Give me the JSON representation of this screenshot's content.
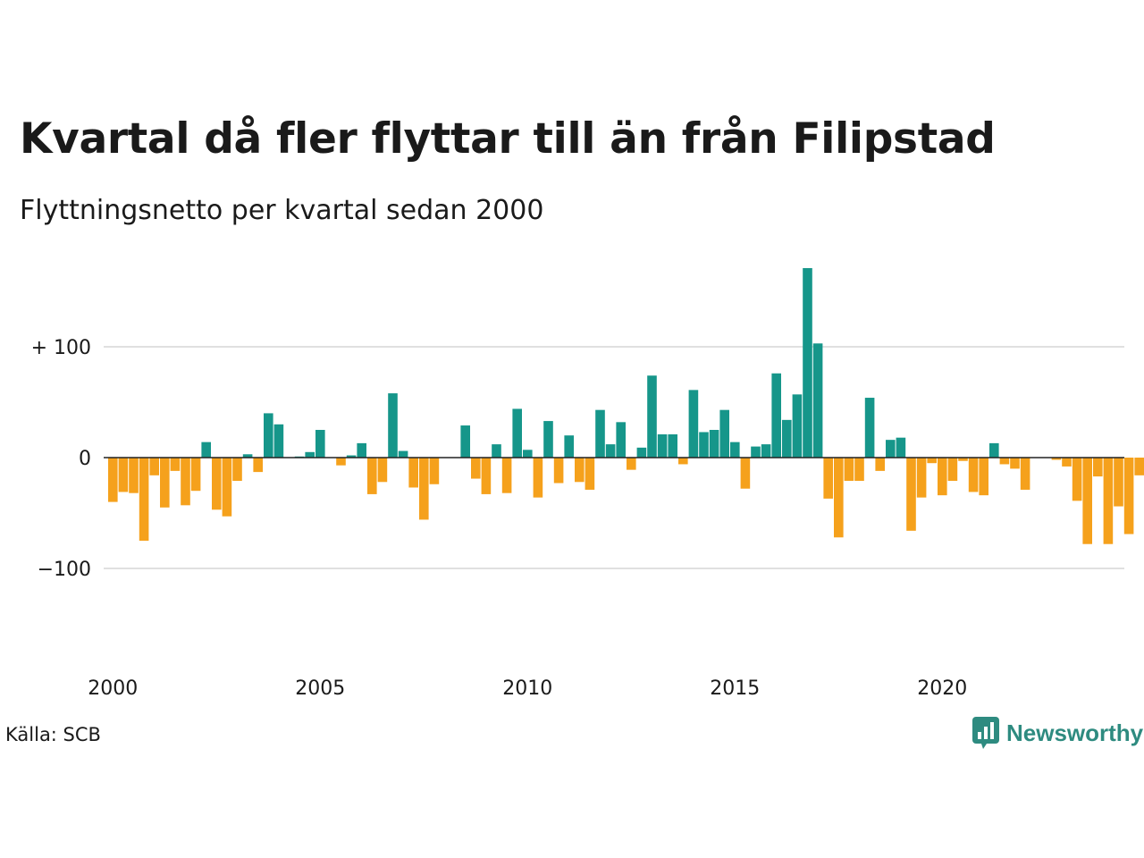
{
  "title": "Kvartal då fler flyttar till än från Filipstad",
  "subtitle": "Flyttningsnetto per kvartal sedan 2000",
  "source": "Källa: SCB",
  "brand": {
    "name": "Newsworthy",
    "color": "#2e8b80"
  },
  "chart_data": {
    "type": "bar",
    "colors": {
      "positive": "#16968a",
      "negative": "#f5a11c",
      "grid": "#e0e0e0",
      "zero_line": "#222222"
    },
    "ylim": [
      -200,
      200
    ],
    "y_ticks": [
      {
        "value": 100,
        "label": "+ 100"
      },
      {
        "value": 0,
        "label": "0"
      },
      {
        "value": -100,
        "label": "−100"
      }
    ],
    "x_ticks": [
      {
        "year": 2000,
        "label": "2000"
      },
      {
        "year": 2005,
        "label": "2005"
      },
      {
        "year": 2010,
        "label": "2010"
      },
      {
        "year": 2015,
        "label": "2015"
      },
      {
        "year": 2020,
        "label": "2020"
      }
    ],
    "grid": true,
    "start_year": 2000,
    "start_quarter": 1,
    "values": [
      -40,
      -31,
      -32,
      -75,
      -16,
      -45,
      -12,
      -43,
      -30,
      14,
      -47,
      -53,
      -21,
      3,
      -13,
      40,
      30,
      0,
      1,
      5,
      25,
      0,
      -7,
      2,
      13,
      -33,
      -22,
      58,
      6,
      -27,
      -56,
      -24,
      0,
      0,
      29,
      -19,
      -33,
      12,
      -32,
      44,
      7,
      -36,
      33,
      -23,
      20,
      -22,
      -29,
      43,
      12,
      32,
      -11,
      9,
      74,
      21,
      21,
      -6,
      61,
      23,
      25,
      43,
      14,
      -28,
      10,
      12,
      76,
      34,
      57,
      171,
      103,
      -37,
      -72,
      -21,
      -21,
      54,
      -12,
      16,
      18,
      -66,
      -36,
      -5,
      -34,
      -21,
      -3,
      -31,
      -34,
      13,
      -6,
      -10,
      -29,
      0,
      0,
      -2,
      -8,
      -39,
      -78,
      -17,
      -78,
      -44,
      -69,
      -16
    ]
  }
}
